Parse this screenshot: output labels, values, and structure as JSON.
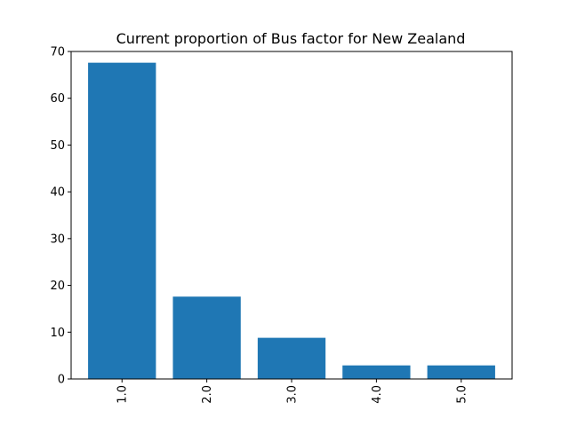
{
  "chart_data": {
    "type": "bar",
    "title": "Current proportion of Bus factor for New Zealand",
    "xlabel": "",
    "ylabel": "",
    "categories": [
      "1.0",
      "2.0",
      "3.0",
      "4.0",
      "5.0"
    ],
    "values": [
      67.6,
      17.6,
      8.8,
      2.9,
      2.9
    ],
    "ylim": [
      0,
      70
    ],
    "yticks": [
      0,
      10,
      20,
      30,
      40,
      50,
      60,
      70
    ],
    "grid": false,
    "legend": "none",
    "bar_color": "#1f77b4"
  }
}
